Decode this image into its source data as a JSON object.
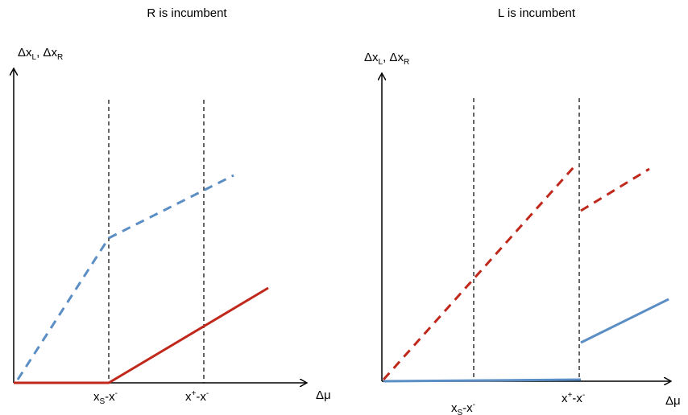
{
  "panels": [
    {
      "title": "R is incumbent",
      "y_axis_label": {
        "base": "Δx",
        "sub1": "L",
        "sep": ", Δx",
        "sub2": "R"
      },
      "x_axis_label": "Δμ",
      "ticks": [
        {
          "base": "x",
          "sub": "S",
          "rest": "-x",
          "sup": "-"
        },
        {
          "base": "x",
          "sup1": "+",
          "rest": "-x",
          "sup": "-"
        }
      ],
      "series": [
        {
          "color": "#5b8ec4",
          "style": "dashed"
        },
        {
          "color": "#c0281b",
          "style": "solid"
        }
      ]
    },
    {
      "title": "L is incumbent",
      "y_axis_label": {
        "base": "Δx",
        "sub1": "L",
        "sep": ", Δx",
        "sub2": "R"
      },
      "x_axis_label": "Δμ",
      "ticks": [
        {
          "base": "x",
          "sub": "S",
          "rest": "-x",
          "sup": "-"
        },
        {
          "base": "x",
          "sup1": "+",
          "rest": "-x",
          "sup": "-"
        }
      ],
      "series": [
        {
          "color": "#c0281b",
          "style": "dashed"
        },
        {
          "color": "#5b8ec4",
          "style": "solid"
        }
      ]
    }
  ]
}
